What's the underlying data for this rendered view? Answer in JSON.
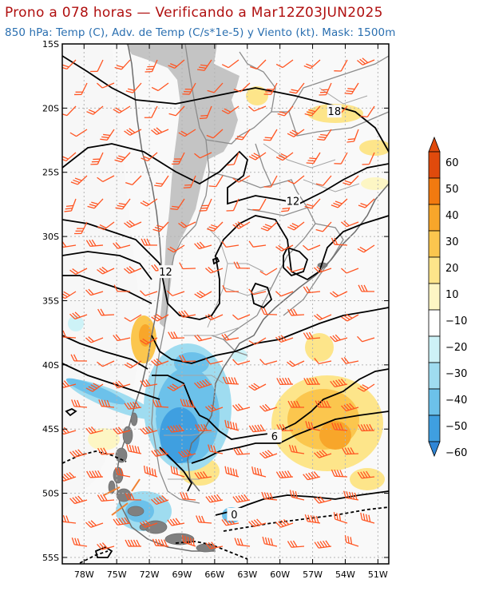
{
  "header": {
    "title": "Prono a 078 horas — Verificando a Mar12Z03JUN2025",
    "subtitle": "850 hPa: Temp (C), Adv. de Temp (C/s*1e-5) y Viento (kt). Mask: 1500m"
  },
  "map": {
    "lon_range": [
      -80,
      -50
    ],
    "lat_range": [
      -55.5,
      -15
    ],
    "lat_ticks": [
      "15S",
      "20S",
      "25S",
      "30S",
      "35S",
      "40S",
      "45S",
      "50S",
      "55S"
    ],
    "lon_ticks": [
      "78W",
      "75W",
      "72W",
      "69W",
      "66W",
      "63W",
      "60W",
      "57W",
      "54W",
      "51W"
    ],
    "contour_labels": [
      {
        "text": "18",
        "lon": -55,
        "lat": -20.3
      },
      {
        "text": "12",
        "lon": -58.8,
        "lat": -27.3
      },
      {
        "text": "12",
        "lon": -70.5,
        "lat": -32.8
      },
      {
        "text": "6",
        "lon": -60.5,
        "lat": -45.6
      },
      {
        "text": "0",
        "lon": -64.2,
        "lat": -51.7
      }
    ]
  },
  "colorbar": {
    "labels": [
      "60",
      "50",
      "40",
      "30",
      "20",
      "10",
      "−10",
      "−20",
      "−30",
      "−40",
      "−50",
      "−60"
    ],
    "colors": [
      "#e04a0c",
      "#f27a10",
      "#f8a62a",
      "#fbc64e",
      "#fde58a",
      "#fdf6c4",
      "#ffffff",
      "#cdf2f7",
      "#9fdcf0",
      "#6cc1ea",
      "#3f9fe0",
      "#2f86d6",
      "#2f7fd2"
    ]
  }
}
